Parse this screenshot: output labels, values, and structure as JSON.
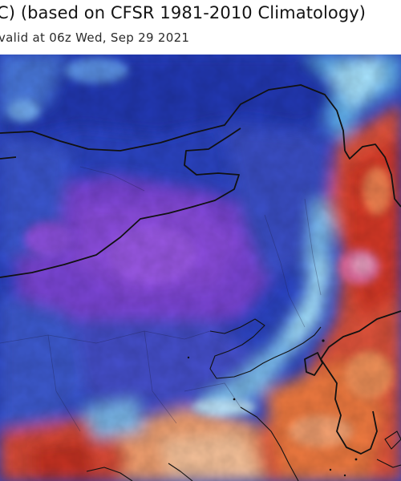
{
  "header": {
    "title": "C) (based on CFSR 1981-2010 Climatology)",
    "subtitle": "valid at 06z Wed, Sep 29 2021"
  },
  "map": {
    "colors": {
      "deep_blue": "#2438b8",
      "mid_blue": "#3a5ad8",
      "light_blue": "#7fc8f0",
      "cyan": "#a8e6ff",
      "purple": "#8446d8",
      "violet": "#6a3ad0",
      "red": "#d83a28",
      "orange": "#f07a40",
      "salmon": "#f5a878",
      "pink": "#e878a8",
      "border": "#111111"
    }
  }
}
